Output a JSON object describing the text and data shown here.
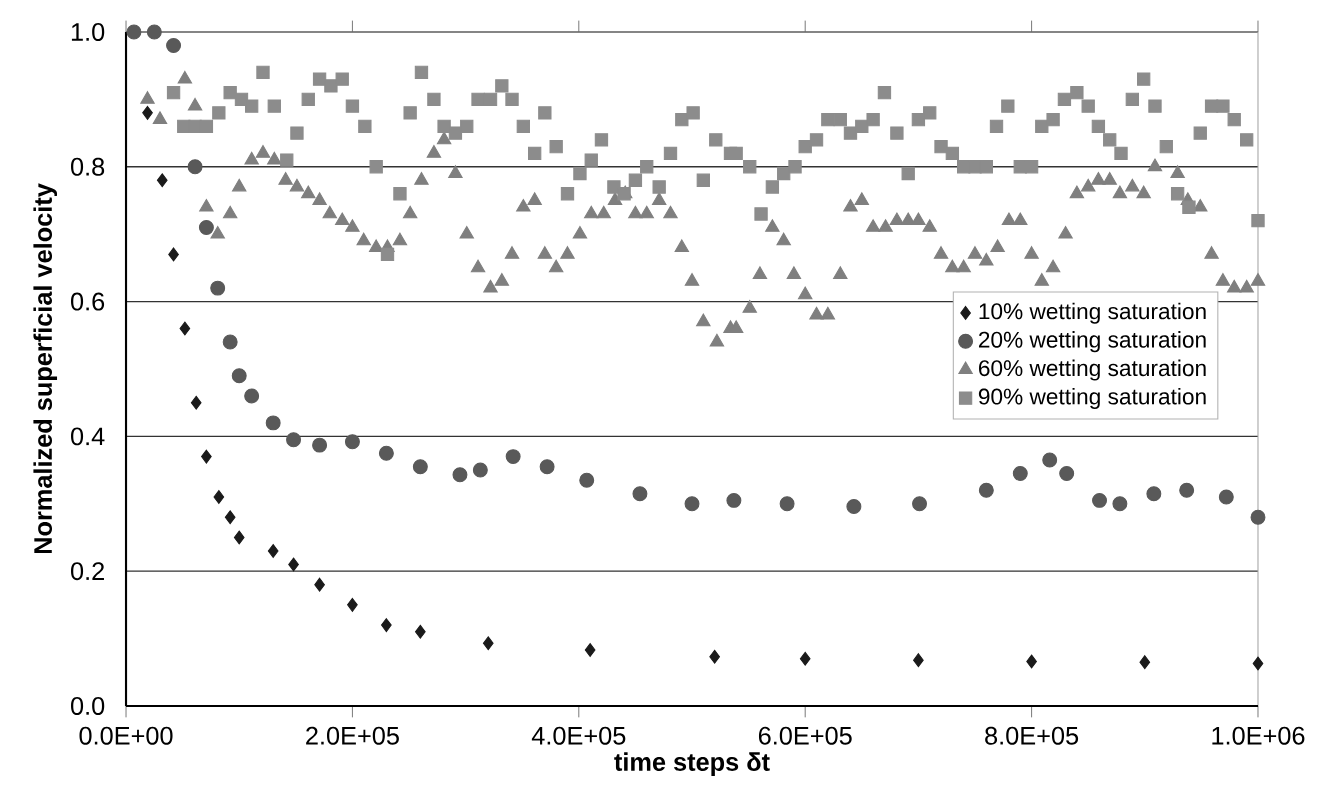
{
  "chart_data": {
    "type": "scatter",
    "xlabel": "time steps δt",
    "ylabel": "Normalized superficial velocity",
    "xlim": [
      0,
      1000000
    ],
    "ylim": [
      0,
      1.0
    ],
    "xticks": [
      {
        "value": 0,
        "label": "0.0E+00"
      },
      {
        "value": 200000,
        "label": "2.0E+05"
      },
      {
        "value": 400000,
        "label": "4.0E+05"
      },
      {
        "value": 600000,
        "label": "6.0E+05"
      },
      {
        "value": 800000,
        "label": "8.0E+05"
      },
      {
        "value": 1000000,
        "label": "1.0E+06"
      }
    ],
    "yticks": [
      {
        "value": 0,
        "label": "0.0"
      },
      {
        "value": 0.2,
        "label": "0.2"
      },
      {
        "value": 0.4,
        "label": "0.4"
      },
      {
        "value": 0.6,
        "label": "0.6"
      },
      {
        "value": 0.8,
        "label": "0.8"
      },
      {
        "value": 1.0,
        "label": "1.0"
      }
    ],
    "grid": "y",
    "legend": "right",
    "series": [
      {
        "name": "10% wetting saturation",
        "color": "#1a1a1a",
        "marker": "diamond",
        "x": [
          19000,
          32000,
          42000,
          52000,
          62000,
          71000,
          82000,
          92000,
          100000,
          130000,
          148000,
          171000,
          200000,
          230000,
          260000,
          320000,
          410000,
          520000,
          600000,
          700000,
          800000,
          900000,
          1000000
        ],
        "values": [
          0.88,
          0.78,
          0.67,
          0.56,
          0.45,
          0.37,
          0.31,
          0.28,
          0.25,
          0.23,
          0.21,
          0.18,
          0.15,
          0.12,
          0.11,
          0.093,
          0.083,
          0.073,
          0.07,
          0.068,
          0.066,
          0.065,
          0.063
        ]
      },
      {
        "name": "20% wetting saturation",
        "color": "#595959",
        "marker": "circle",
        "x": [
          7000,
          25000,
          42000,
          61000,
          71000,
          81000,
          92000,
          100000,
          111000,
          130000,
          148000,
          171000,
          200000,
          230000,
          260000,
          295000,
          313000,
          342000,
          372000,
          407000,
          454000,
          500000,
          537000,
          584000,
          643000,
          701000,
          760000,
          790000,
          816000,
          831000,
          860000,
          878000,
          908000,
          937000,
          972000,
          1000000
        ],
        "values": [
          1.0,
          1.0,
          0.98,
          0.8,
          0.71,
          0.62,
          0.54,
          0.49,
          0.46,
          0.42,
          0.395,
          0.387,
          0.392,
          0.375,
          0.355,
          0.343,
          0.35,
          0.37,
          0.355,
          0.335,
          0.315,
          0.3,
          0.305,
          0.3,
          0.296,
          0.3,
          0.32,
          0.345,
          0.365,
          0.345,
          0.305,
          0.3,
          0.315,
          0.32,
          0.31,
          0.28
        ]
      },
      {
        "name": "60% wetting saturation",
        "color": "#7f7f7f",
        "marker": "triangle",
        "x": [
          19000,
          30000,
          52000,
          61000,
          71000,
          81000,
          92000,
          100000,
          111000,
          121000,
          131000,
          141000,
          151000,
          161000,
          171000,
          180000,
          191000,
          200000,
          210000,
          221000,
          231000,
          242000,
          251000,
          261000,
          272000,
          281000,
          291000,
          301000,
          311000,
          322000,
          332000,
          341000,
          351000,
          361000,
          370000,
          380000,
          390000,
          401000,
          411000,
          422000,
          432000,
          441000,
          450000,
          460000,
          471000,
          481000,
          491000,
          500000,
          510000,
          522000,
          534000,
          539000,
          551000,
          560000,
          571000,
          581000,
          590000,
          600000,
          610000,
          620000,
          631000,
          640000,
          650000,
          660000,
          671000,
          681000,
          691000,
          700000,
          710000,
          720000,
          730000,
          740000,
          750000,
          760000,
          770000,
          780000,
          790000,
          800000,
          809000,
          819000,
          830000,
          840000,
          850000,
          859000,
          869000,
          878000,
          889000,
          899000,
          909000,
          929000,
          938000,
          949000,
          959000,
          969000,
          979000,
          990000,
          1000000
        ],
        "values": [
          0.9,
          0.87,
          0.93,
          0.89,
          0.74,
          0.7,
          0.73,
          0.77,
          0.81,
          0.82,
          0.81,
          0.78,
          0.77,
          0.76,
          0.75,
          0.73,
          0.72,
          0.71,
          0.69,
          0.68,
          0.68,
          0.69,
          0.73,
          0.78,
          0.82,
          0.84,
          0.79,
          0.7,
          0.65,
          0.62,
          0.63,
          0.67,
          0.74,
          0.75,
          0.67,
          0.65,
          0.67,
          0.7,
          0.73,
          0.73,
          0.75,
          0.76,
          0.73,
          0.73,
          0.75,
          0.73,
          0.68,
          0.63,
          0.57,
          0.54,
          0.56,
          0.56,
          0.59,
          0.64,
          0.71,
          0.69,
          0.64,
          0.61,
          0.58,
          0.58,
          0.64,
          0.74,
          0.75,
          0.71,
          0.71,
          0.72,
          0.72,
          0.72,
          0.71,
          0.67,
          0.65,
          0.65,
          0.67,
          0.66,
          0.68,
          0.72,
          0.72,
          0.67,
          0.63,
          0.65,
          0.7,
          0.76,
          0.77,
          0.78,
          0.78,
          0.76,
          0.77,
          0.76,
          0.8,
          0.79,
          0.75,
          0.74,
          0.67,
          0.63,
          0.62,
          0.62,
          0.63
        ]
      },
      {
        "name": "90% wetting saturation",
        "color": "#8c8c8c",
        "marker": "square",
        "x": [
          42000,
          51000,
          61000,
          71000,
          82000,
          92000,
          102000,
          111000,
          121000,
          131000,
          142000,
          151000,
          161000,
          171000,
          181000,
          191000,
          200000,
          211000,
          221000,
          231000,
          242000,
          251000,
          261000,
          272000,
          281000,
          291000,
          301000,
          311000,
          322000,
          332000,
          341000,
          351000,
          361000,
          370000,
          380000,
          390000,
          401000,
          411000,
          420000,
          431000,
          440000,
          450000,
          460000,
          471000,
          481000,
          491000,
          501000,
          510000,
          521000,
          534000,
          539000,
          551000,
          561000,
          571000,
          581000,
          591000,
          600000,
          610000,
          620000,
          631000,
          640000,
          650000,
          660000,
          670000,
          681000,
          691000,
          700000,
          710000,
          720000,
          730000,
          740000,
          750000,
          760000,
          769000,
          779000,
          790000,
          800000,
          809000,
          819000,
          829000,
          840000,
          850000,
          859000,
          869000,
          879000,
          889000,
          899000,
          909000,
          919000,
          929000,
          939000,
          949000,
          959000,
          969000,
          979000,
          990000,
          1000000
        ],
        "values": [
          0.91,
          0.86,
          0.86,
          0.86,
          0.88,
          0.91,
          0.9,
          0.89,
          0.94,
          0.89,
          0.81,
          0.85,
          0.9,
          0.93,
          0.92,
          0.93,
          0.89,
          0.86,
          0.8,
          0.67,
          0.76,
          0.88,
          0.94,
          0.9,
          0.86,
          0.85,
          0.86,
          0.9,
          0.9,
          0.92,
          0.9,
          0.86,
          0.82,
          0.88,
          0.83,
          0.76,
          0.79,
          0.81,
          0.84,
          0.77,
          0.76,
          0.78,
          0.8,
          0.77,
          0.82,
          0.87,
          0.88,
          0.78,
          0.84,
          0.82,
          0.82,
          0.8,
          0.73,
          0.77,
          0.79,
          0.8,
          0.83,
          0.84,
          0.87,
          0.87,
          0.85,
          0.86,
          0.87,
          0.91,
          0.85,
          0.79,
          0.87,
          0.88,
          0.83,
          0.82,
          0.8,
          0.8,
          0.8,
          0.86,
          0.89,
          0.8,
          0.8,
          0.86,
          0.87,
          0.9,
          0.91,
          0.89,
          0.86,
          0.84,
          0.82,
          0.9,
          0.93,
          0.89,
          0.83,
          0.76,
          0.74,
          0.85,
          0.89,
          0.89,
          0.87,
          0.84,
          0.72
        ]
      }
    ]
  }
}
